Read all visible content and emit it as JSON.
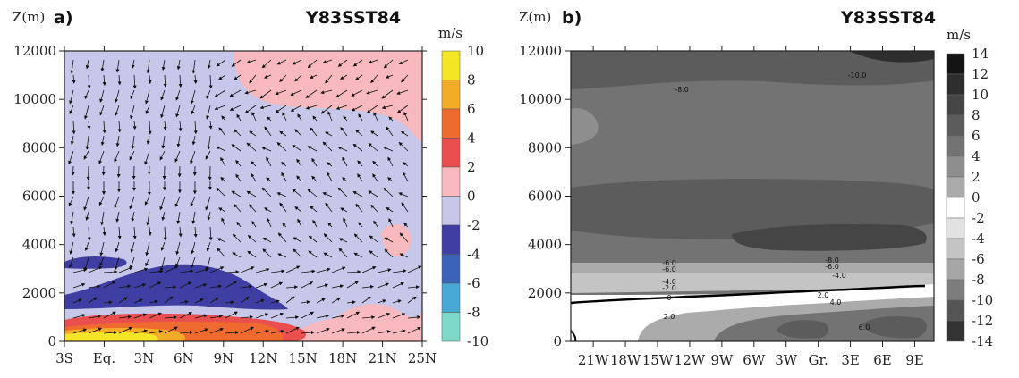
{
  "chart_data": [
    {
      "type": "heatmap",
      "panel_label": "a)",
      "title": "Y83SST84",
      "ylabel": "Z(m)",
      "colorbar_unit": "m/s",
      "x_tick_labels": [
        "3S",
        "Eq.",
        "3N",
        "6N",
        "9N",
        "12N",
        "15N",
        "18N",
        "21N",
        "25N"
      ],
      "y_tick_labels": [
        "0",
        "2000",
        "4000",
        "6000",
        "8000",
        "10000",
        "12000"
      ],
      "ylim": [
        0,
        12000
      ],
      "colorbar_levels": [
        "10",
        "8",
        "6",
        "4",
        "2",
        "0",
        "-2",
        "-4",
        "-6",
        "-8",
        "-10"
      ],
      "colorbar_colors": [
        "#f3e627",
        "#f3ac27",
        "#ef6a2f",
        "#ea4f4f",
        "#f7b9bd",
        "#c7c7e9",
        "#3f3fa3",
        "#3b63b8",
        "#48a8d6",
        "#7fd9cb"
      ],
      "background_value_range": [
        -2,
        0
      ],
      "positive_region_value_range": [
        0,
        2
      ],
      "vectors": "wind arrows overlaid"
    },
    {
      "type": "heatmap",
      "panel_label": "b)",
      "title": "Y83SST84",
      "ylabel": "Z(m)",
      "colorbar_unit": "m/s",
      "x_tick_labels": [
        "21W",
        "18W",
        "15W",
        "12W",
        "9W",
        "6W",
        "3W",
        "Gr.",
        "3E",
        "6E",
        "9E"
      ],
      "y_tick_labels": [
        "0",
        "2000",
        "4000",
        "6000",
        "8000",
        "10000",
        "12000"
      ],
      "ylim": [
        0,
        12000
      ],
      "colorbar_levels": [
        "14",
        "12",
        "10",
        "8",
        "6",
        "4",
        "2",
        "0",
        "-2",
        "-4",
        "-6",
        "-8",
        "-10",
        "-12",
        "-14"
      ],
      "colorbar_colors": [
        "#141414",
        "#2e2e2e",
        "#454545",
        "#5c5c5c",
        "#737373",
        "#8e8e8e",
        "#ababab",
        "#ffffff",
        "#e2e2e2",
        "#c4c4c4",
        "#a6a6a6",
        "#7d7d7d",
        "#555555",
        "#333333"
      ],
      "contour_labels": [
        "-10.0",
        "-8.0",
        "-6.0",
        "-6.0",
        "-4.0",
        "-2.0",
        "-8.0",
        "-6.0",
        "-4.0",
        "0",
        "2.0",
        "2.0",
        "4.0",
        "6.0"
      ]
    }
  ]
}
